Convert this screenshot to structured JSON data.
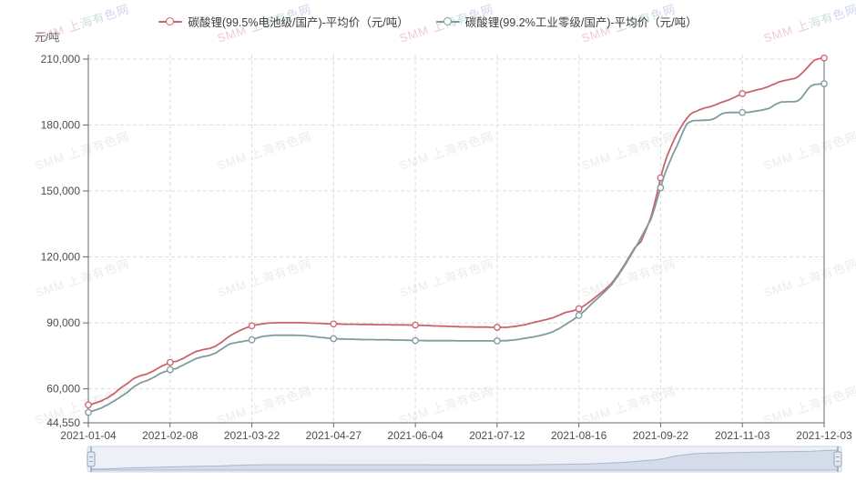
{
  "header": {
    "y_axis_unit": "元/吨"
  },
  "watermark": {
    "text": "SMM 上海有色网"
  },
  "legend": {
    "items": [
      {
        "label": "碳酸锂(99.5%电池级/国产)-平均价（元/吨）",
        "color": "#c9646e"
      },
      {
        "label": "碳酸锂(99.2%工业零级/国产)-平均价（元/吨）",
        "color": "#7f9ba0"
      }
    ]
  },
  "colors": {
    "battery_series": "#c9646e",
    "industrial_series": "#7f9ba0",
    "axis": "#5f6b74",
    "grid": "#dcdcdc",
    "tick_label": "#4d4d4d",
    "slider_track": "#edf1f7",
    "slider_border": "#ccd5e3",
    "slider_fill": "#d4dcea",
    "slider_line": "#a9b6cc",
    "slider_handle": "#93a4bd"
  },
  "chart_data": {
    "type": "line",
    "title": "",
    "xlabel": "",
    "ylabel": "元/吨",
    "ylim": [
      44550,
      210000
    ],
    "grid": true,
    "legend_position": "top",
    "x_count": 226,
    "marker_every": 25,
    "y_ticks": [
      {
        "v": 44550,
        "label": "44,550"
      },
      {
        "v": 60000,
        "label": "60,000"
      },
      {
        "v": 90000,
        "label": "90,000"
      },
      {
        "v": 120000,
        "label": "120,000"
      },
      {
        "v": 150000,
        "label": "150,000"
      },
      {
        "v": 180000,
        "label": "180,000"
      },
      {
        "v": 210000,
        "label": "210,000"
      }
    ],
    "x_ticks": [
      {
        "i": 0,
        "label": "2021-01-04"
      },
      {
        "i": 25,
        "label": "2021-02-08"
      },
      {
        "i": 50,
        "label": "2021-03-22"
      },
      {
        "i": 75,
        "label": "2021-04-27"
      },
      {
        "i": 100,
        "label": "2021-06-04"
      },
      {
        "i": 125,
        "label": "2021-07-12"
      },
      {
        "i": 150,
        "label": "2021-08-16"
      },
      {
        "i": 175,
        "label": "2021-09-22"
      },
      {
        "i": 200,
        "label": "2021-11-03"
      },
      {
        "i": 225,
        "label": "2021-12-03"
      }
    ],
    "series": [
      {
        "name": "碳酸锂(99.5%电池级/国产)-平均价（元/吨）",
        "color": "#c9646e",
        "anchors": [
          [
            0,
            52700
          ],
          [
            1,
            53000
          ],
          [
            2,
            53500
          ],
          [
            3,
            54000
          ],
          [
            4,
            54500
          ],
          [
            6,
            56000
          ],
          [
            8,
            58000
          ],
          [
            10,
            60500
          ],
          [
            12,
            62500
          ],
          [
            14,
            64800
          ],
          [
            16,
            66000
          ],
          [
            18,
            66800
          ],
          [
            20,
            68200
          ],
          [
            22,
            70000
          ],
          [
            25,
            72000
          ],
          [
            27,
            72500
          ],
          [
            29,
            73800
          ],
          [
            31,
            75500
          ],
          [
            33,
            77000
          ],
          [
            35,
            77800
          ],
          [
            37,
            78300
          ],
          [
            39,
            79500
          ],
          [
            41,
            81500
          ],
          [
            43,
            83800
          ],
          [
            45,
            85500
          ],
          [
            47,
            87000
          ],
          [
            50,
            88700
          ],
          [
            52,
            89300
          ],
          [
            55,
            89900
          ],
          [
            58,
            90100
          ],
          [
            64,
            90100
          ],
          [
            68,
            89900
          ],
          [
            72,
            89700
          ],
          [
            75,
            89500
          ],
          [
            80,
            89400
          ],
          [
            85,
            89300
          ],
          [
            90,
            89200
          ],
          [
            95,
            89100
          ],
          [
            100,
            89000
          ],
          [
            105,
            88700
          ],
          [
            110,
            88400
          ],
          [
            115,
            88200
          ],
          [
            120,
            88100
          ],
          [
            125,
            88000
          ],
          [
            128,
            88000
          ],
          [
            131,
            88500
          ],
          [
            134,
            89300
          ],
          [
            137,
            90500
          ],
          [
            140,
            91500
          ],
          [
            142,
            92300
          ],
          [
            144,
            93500
          ],
          [
            146,
            94800
          ],
          [
            148,
            95400
          ],
          [
            150,
            96400
          ],
          [
            152,
            98200
          ],
          [
            154,
            100400
          ],
          [
            156,
            102800
          ],
          [
            158,
            105200
          ],
          [
            160,
            108000
          ],
          [
            162,
            112000
          ],
          [
            164,
            116500
          ],
          [
            166,
            121500
          ],
          [
            167,
            124000
          ],
          [
            168,
            125500
          ],
          [
            169,
            127000
          ],
          [
            170,
            130500
          ],
          [
            171,
            134000
          ],
          [
            172,
            138000
          ],
          [
            173,
            143500
          ],
          [
            174,
            149500
          ],
          [
            175,
            156000
          ],
          [
            176,
            161500
          ],
          [
            177,
            166000
          ],
          [
            178,
            169500
          ],
          [
            179,
            173000
          ],
          [
            180,
            176000
          ],
          [
            181,
            178500
          ],
          [
            182,
            181000
          ],
          [
            183,
            183000
          ],
          [
            184,
            184800
          ],
          [
            185,
            185800
          ],
          [
            186,
            186300
          ],
          [
            187,
            187000
          ],
          [
            188,
            187500
          ],
          [
            189,
            188000
          ],
          [
            190,
            188300
          ],
          [
            191,
            188800
          ],
          [
            192,
            189300
          ],
          [
            193,
            190000
          ],
          [
            194,
            190500
          ],
          [
            195,
            191000
          ],
          [
            196,
            191500
          ],
          [
            197,
            192200
          ],
          [
            198,
            192900
          ],
          [
            199,
            193600
          ],
          [
            200,
            194300
          ],
          [
            202,
            195000
          ],
          [
            204,
            195800
          ],
          [
            206,
            196500
          ],
          [
            208,
            197500
          ],
          [
            210,
            198800
          ],
          [
            211,
            199500
          ],
          [
            213,
            200300
          ],
          [
            215,
            200900
          ],
          [
            216,
            201200
          ],
          [
            217,
            202000
          ],
          [
            218,
            203300
          ],
          [
            219,
            204800
          ],
          [
            220,
            206300
          ],
          [
            221,
            208000
          ],
          [
            222,
            209500
          ],
          [
            223,
            210000
          ],
          [
            225,
            210500
          ]
        ]
      },
      {
        "name": "碳酸锂(99.2%工业零级/国产)-平均价（元/吨）",
        "color": "#7f9ba0",
        "anchors": [
          [
            0,
            49300
          ],
          [
            2,
            50200
          ],
          [
            4,
            51300
          ],
          [
            6,
            52800
          ],
          [
            8,
            54500
          ],
          [
            10,
            56500
          ],
          [
            12,
            58500
          ],
          [
            14,
            61000
          ],
          [
            16,
            62800
          ],
          [
            18,
            63800
          ],
          [
            20,
            65200
          ],
          [
            22,
            67000
          ],
          [
            25,
            68700
          ],
          [
            27,
            69300
          ],
          [
            29,
            70800
          ],
          [
            31,
            72300
          ],
          [
            33,
            73800
          ],
          [
            35,
            74600
          ],
          [
            37,
            75200
          ],
          [
            39,
            76300
          ],
          [
            41,
            78300
          ],
          [
            43,
            80300
          ],
          [
            45,
            81000
          ],
          [
            47,
            81500
          ],
          [
            50,
            82300
          ],
          [
            52,
            83300
          ],
          [
            54,
            84000
          ],
          [
            57,
            84400
          ],
          [
            63,
            84400
          ],
          [
            67,
            84100
          ],
          [
            70,
            83600
          ],
          [
            73,
            83100
          ],
          [
            75,
            82800
          ],
          [
            80,
            82600
          ],
          [
            85,
            82400
          ],
          [
            90,
            82300
          ],
          [
            95,
            82200
          ],
          [
            100,
            82000
          ],
          [
            105,
            81900
          ],
          [
            110,
            81900
          ],
          [
            115,
            81800
          ],
          [
            120,
            81800
          ],
          [
            125,
            81800
          ],
          [
            128,
            81900
          ],
          [
            131,
            82400
          ],
          [
            134,
            83100
          ],
          [
            137,
            83900
          ],
          [
            140,
            84900
          ],
          [
            142,
            85900
          ],
          [
            144,
            87400
          ],
          [
            146,
            89300
          ],
          [
            148,
            91200
          ],
          [
            150,
            93400
          ],
          [
            152,
            95800
          ],
          [
            154,
            98800
          ],
          [
            156,
            101500
          ],
          [
            158,
            104300
          ],
          [
            160,
            107300
          ],
          [
            162,
            111500
          ],
          [
            164,
            116000
          ],
          [
            166,
            121000
          ],
          [
            168,
            126000
          ],
          [
            170,
            131500
          ],
          [
            172,
            137000
          ],
          [
            173,
            141500
          ],
          [
            174,
            146500
          ],
          [
            175,
            151500
          ],
          [
            176,
            156500
          ],
          [
            177,
            160500
          ],
          [
            178,
            164000
          ],
          [
            179,
            167500
          ],
          [
            180,
            170500
          ],
          [
            181,
            174000
          ],
          [
            182,
            177500
          ],
          [
            183,
            180500
          ],
          [
            184,
            181500
          ],
          [
            185,
            182000
          ],
          [
            190,
            182300
          ],
          [
            191,
            182700
          ],
          [
            192,
            183400
          ],
          [
            193,
            184500
          ],
          [
            194,
            185300
          ],
          [
            195,
            185600
          ],
          [
            197,
            185700
          ],
          [
            200,
            185700
          ],
          [
            202,
            185800
          ],
          [
            204,
            186300
          ],
          [
            206,
            186800
          ],
          [
            208,
            187500
          ],
          [
            209,
            188300
          ],
          [
            210,
            189300
          ],
          [
            211,
            190000
          ],
          [
            212,
            190500
          ],
          [
            216,
            190600
          ],
          [
            217,
            191000
          ],
          [
            218,
            192300
          ],
          [
            219,
            194300
          ],
          [
            220,
            196300
          ],
          [
            221,
            197800
          ],
          [
            222,
            198400
          ],
          [
            223,
            198600
          ],
          [
            225,
            198800
          ]
        ]
      }
    ]
  }
}
